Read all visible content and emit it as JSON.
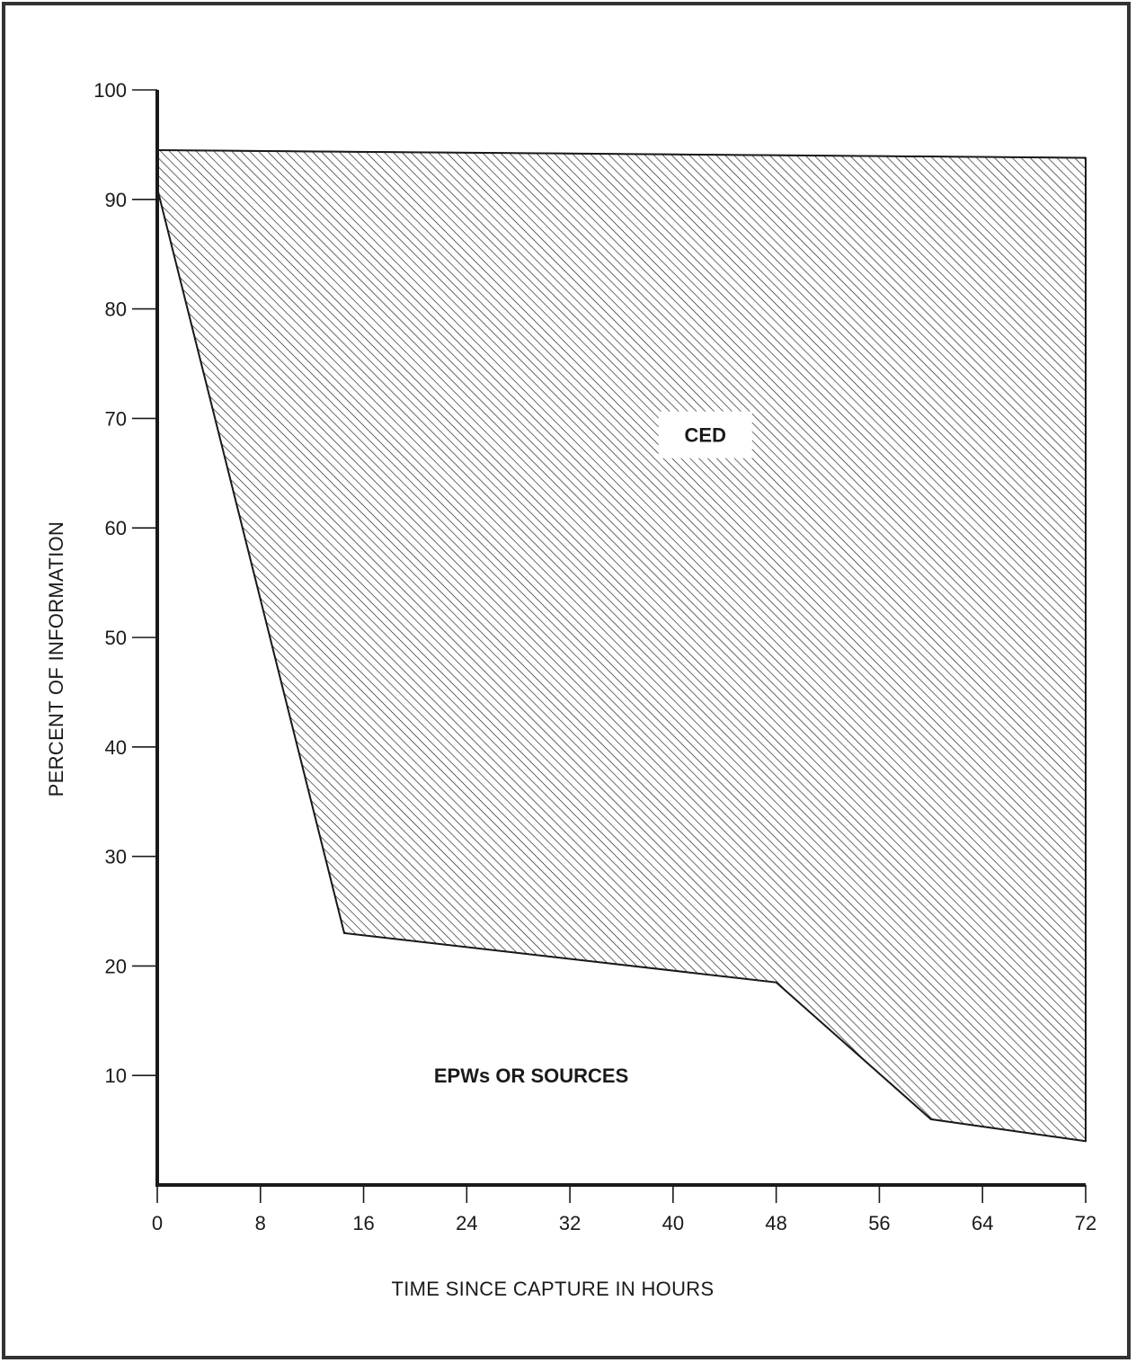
{
  "chart_data": {
    "type": "area",
    "xlabel": "TIME SINCE CAPTURE IN HOURS",
    "ylabel": "PERCENT OF INFORMATION",
    "xlim": [
      0,
      72
    ],
    "ylim": [
      0,
      100
    ],
    "x_ticks": [
      0,
      8,
      16,
      24,
      32,
      40,
      48,
      56,
      64,
      72
    ],
    "y_ticks": [
      10,
      20,
      30,
      40,
      50,
      60,
      70,
      80,
      90,
      100
    ],
    "grid": false,
    "series": [
      {
        "name": "EPWs OR SOURCES",
        "fill": "plain",
        "x": [
          0,
          14.5,
          48,
          60,
          72
        ],
        "y": [
          91,
          23,
          18.5,
          6,
          4
        ]
      },
      {
        "name": "CED",
        "fill": "hatched",
        "x": [
          0,
          72
        ],
        "y": [
          94.5,
          93.8
        ]
      }
    ],
    "annotations": [
      {
        "text": "CED",
        "x": 42.5,
        "y": 68.5,
        "boxed": true
      },
      {
        "text": "EPWs OR SOURCES",
        "x": 29,
        "y": 10,
        "boxed": false
      }
    ]
  },
  "colors": {
    "ink": "#1a1a1a",
    "frame": "#333333",
    "background": "#ffffff"
  }
}
